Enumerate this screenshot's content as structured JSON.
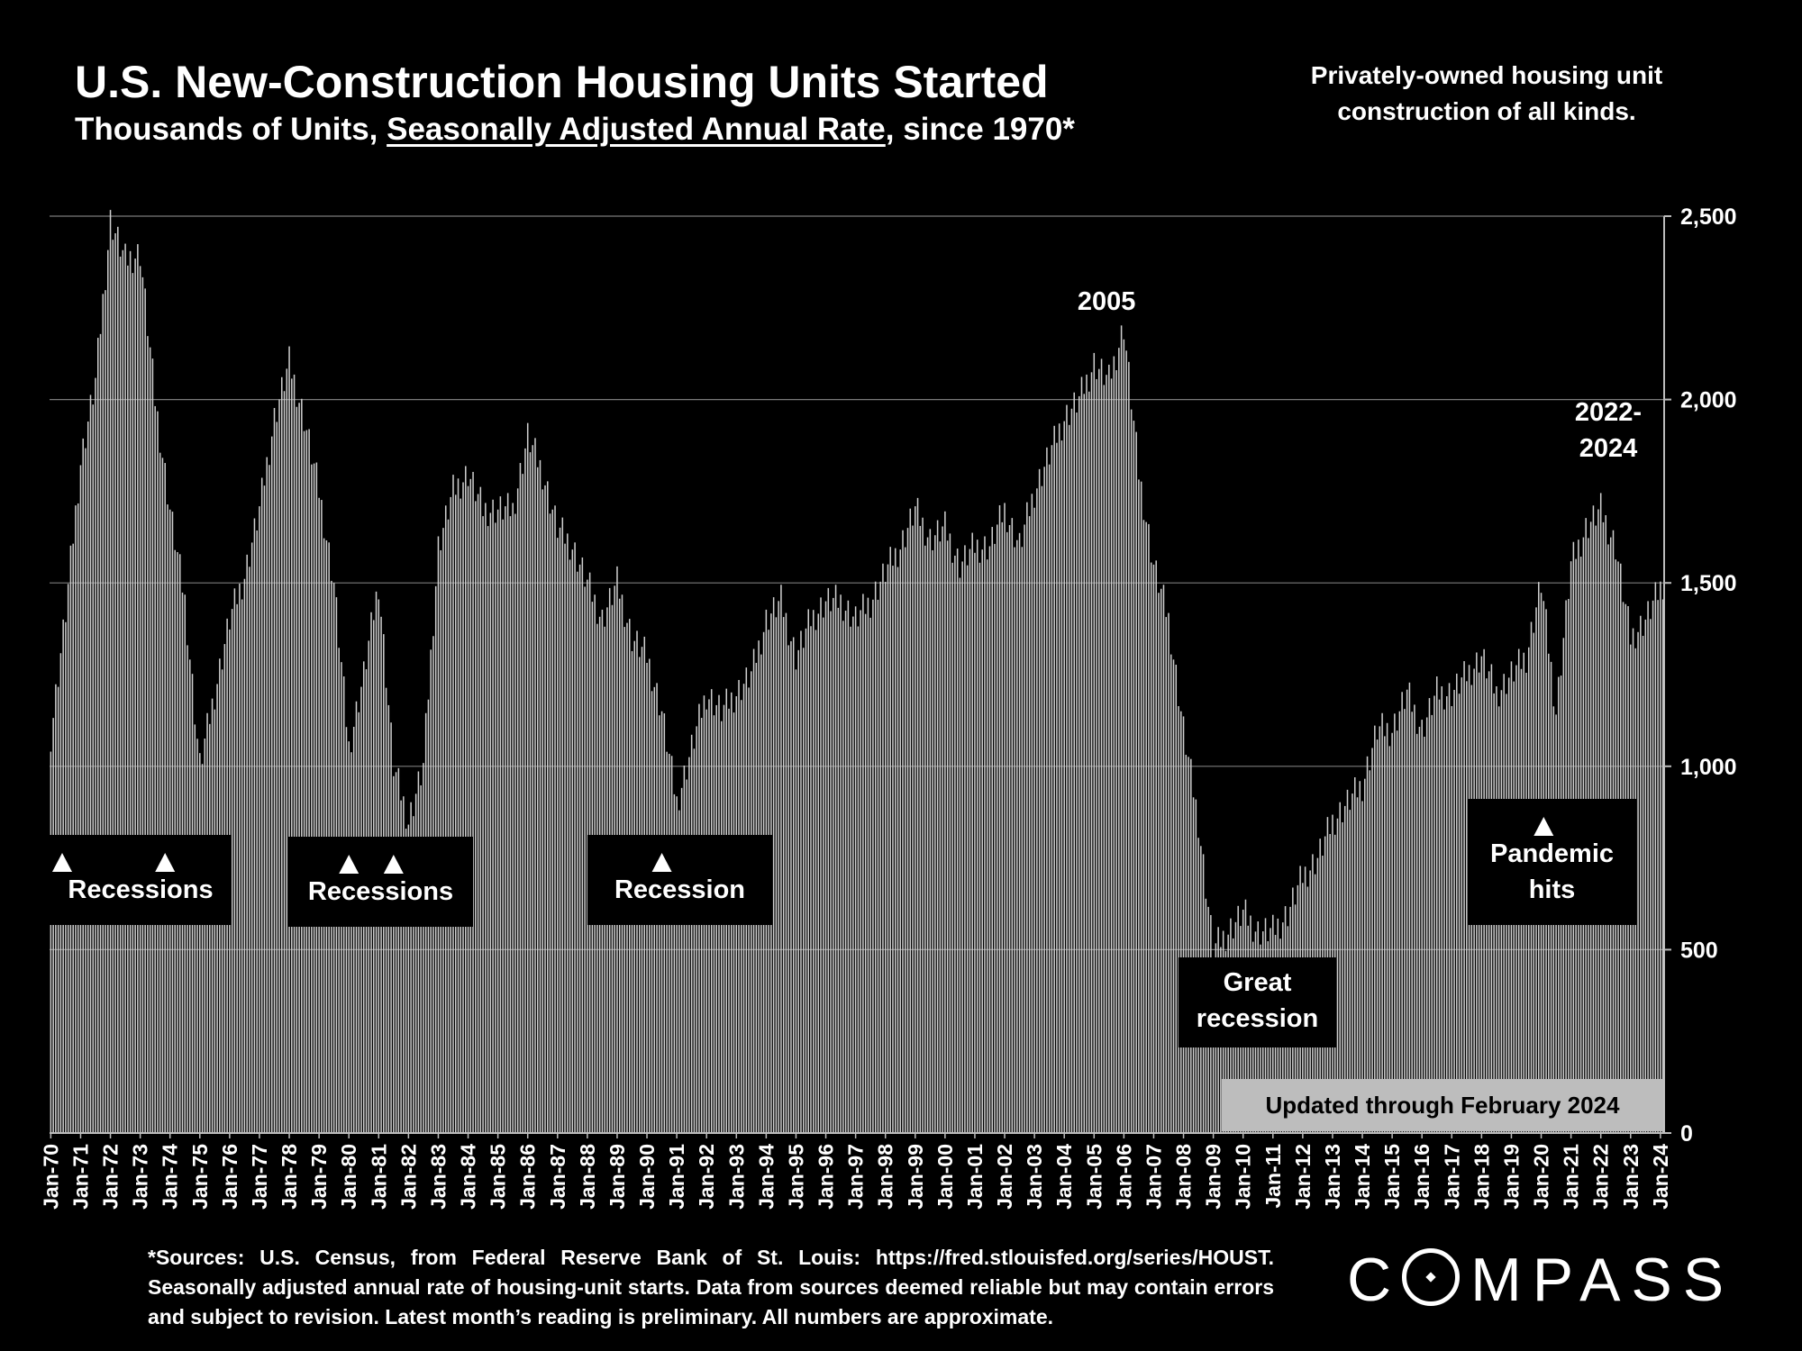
{
  "header": {
    "title": "U.S. New-Construction Housing Units Started",
    "subtitle_pre": "Thousands of Units, ",
    "subtitle_u": "Seasonally Adjusted Annual Rate",
    "subtitle_post": ", since 1970*",
    "note": "Privately-owned housing unit construction of all kinds."
  },
  "footer": {
    "source": "*Sources: U.S. Census, from Federal Reserve Bank of St. Louis:   https://fred.stlouisfed.org/series/HOUST. Seasonally adjusted annual rate of housing-unit starts. Data from sources deemed reliable but may contain errors and subject to revision. Latest month’s reading is preliminary. All numbers are approximate.",
    "brand_pre": "C",
    "brand_post": "MPASS"
  },
  "chart_data": {
    "type": "bar",
    "ylim": [
      0,
      2500
    ],
    "y_ticks": [
      "0",
      "500",
      "1,000",
      "1,500",
      "2,000",
      "2,500"
    ],
    "grid": true,
    "x_ticks": [
      "Jan-70",
      "Jan-71",
      "Jan-72",
      "Jan-73",
      "Jan-74",
      "Jan-75",
      "Jan-76",
      "Jan-77",
      "Jan-78",
      "Jan-79",
      "Jan-80",
      "Jan-81",
      "Jan-82",
      "Jan-83",
      "Jan-84",
      "Jan-85",
      "Jan-86",
      "Jan-87",
      "Jan-88",
      "Jan-89",
      "Jan-90",
      "Jan-91",
      "Jan-92",
      "Jan-93",
      "Jan-94",
      "Jan-95",
      "Jan-96",
      "Jan-97",
      "Jan-98",
      "Jan-99",
      "Jan-00",
      "Jan-01",
      "Jan-02",
      "Jan-03",
      "Jan-04",
      "Jan-05",
      "Jan-06",
      "Jan-07",
      "Jan-08",
      "Jan-09",
      "Jan-10",
      "Jan-11",
      "Jan-12",
      "Jan-13",
      "Jan-14",
      "Jan-15",
      "Jan-16",
      "Jan-17",
      "Jan-18",
      "Jan-19",
      "Jan-20",
      "Jan-21",
      "Jan-22",
      "Jan-23",
      "Jan-24"
    ],
    "series_start": "Jan-70",
    "series_end": "Feb-24",
    "anchor_months": [
      "Jan-70",
      "Jul-70",
      "Jan-71",
      "Jul-71",
      "Jan-72",
      "Jul-72",
      "Jan-73",
      "Jul-73",
      "Jan-74",
      "Jul-74",
      "Jan-75",
      "Jul-75",
      "Jan-76",
      "Jul-76",
      "Jan-77",
      "Jul-77",
      "Jan-78",
      "Jul-78",
      "Jan-79",
      "Jul-79",
      "Jan-80",
      "Jul-80",
      "Jan-81",
      "Jul-81",
      "Jan-82",
      "Jul-82",
      "Jan-83",
      "Jul-83",
      "Jan-84",
      "Jul-84",
      "Jan-85",
      "Jul-85",
      "Jan-86",
      "Jul-86",
      "Jan-87",
      "Jul-87",
      "Jan-88",
      "Jul-88",
      "Jan-89",
      "Jul-89",
      "Jan-90",
      "Jul-90",
      "Jan-91",
      "Jul-91",
      "Jan-92",
      "Jul-92",
      "Jan-93",
      "Jul-93",
      "Jan-94",
      "Jul-94",
      "Jan-95",
      "Jul-95",
      "Jan-96",
      "Jul-96",
      "Jan-97",
      "Jul-97",
      "Jan-98",
      "Jul-98",
      "Jan-99",
      "Jul-99",
      "Jan-00",
      "Jul-00",
      "Jan-01",
      "Jul-01",
      "Jan-02",
      "Jul-02",
      "Jan-03",
      "Jul-03",
      "Jan-04",
      "Jul-04",
      "Jan-05",
      "Jul-05",
      "Jan-06",
      "Jul-06",
      "Jan-07",
      "Jul-07",
      "Jan-08",
      "Jul-08",
      "Jan-09",
      "Jul-09",
      "Jan-10",
      "Jul-10",
      "Jan-11",
      "Jul-11",
      "Jan-12",
      "Jul-12",
      "Jan-13",
      "Jul-13",
      "Jan-14",
      "Jul-14",
      "Jan-15",
      "Jul-15",
      "Jan-16",
      "Jul-16",
      "Jan-17",
      "Jul-17",
      "Jan-18",
      "Jul-18",
      "Jan-19",
      "Jul-19",
      "Jan-20",
      "Jul-20",
      "Jan-21",
      "Jul-21",
      "Jan-22",
      "Jul-22",
      "Jan-23",
      "Jul-23",
      "Feb-24"
    ],
    "anchor_values": [
      1085,
      1420,
      1830,
      2050,
      2490,
      2380,
      2400,
      2000,
      1700,
      1450,
      1000,
      1200,
      1400,
      1520,
      1700,
      1950,
      2100,
      1950,
      1750,
      1500,
      1050,
      1250,
      1500,
      1000,
      850,
      1000,
      1600,
      1750,
      1800,
      1700,
      1700,
      1700,
      1900,
      1800,
      1650,
      1600,
      1500,
      1400,
      1500,
      1350,
      1300,
      1150,
      900,
      1050,
      1200,
      1150,
      1200,
      1250,
      1400,
      1450,
      1300,
      1400,
      1450,
      1450,
      1400,
      1450,
      1530,
      1600,
      1700,
      1620,
      1650,
      1550,
      1600,
      1600,
      1700,
      1600,
      1750,
      1850,
      1950,
      2000,
      2100,
      2050,
      2200,
      1800,
      1550,
      1400,
      1100,
      850,
      500,
      550,
      600,
      550,
      550,
      600,
      700,
      750,
      850,
      900,
      950,
      1100,
      1100,
      1200,
      1100,
      1200,
      1200,
      1250,
      1300,
      1200,
      1250,
      1300,
      1500,
      1150,
      1550,
      1650,
      1700,
      1600,
      1350,
      1400,
      1500
    ],
    "annotations": [
      {
        "text": "2005",
        "x": "Jun-05",
        "y": 2200
      },
      {
        "text_lines": [
          "2022-",
          "2024"
        ],
        "x": "Apr-22",
        "y": 1800
      }
    ],
    "callouts": [
      {
        "key": "r1",
        "lines": [
          "Recessions"
        ],
        "markers": [
          "Jan-70",
          "Nov-73"
        ]
      },
      {
        "key": "r2",
        "lines": [
          "Recessions"
        ],
        "markers": [
          "Jan-80",
          "Jul-81"
        ]
      },
      {
        "key": "r3",
        "lines": [
          "Recession"
        ],
        "markers": [
          "Jul-90"
        ]
      },
      {
        "key": "r4",
        "lines": [
          "Great",
          "recession"
        ],
        "markers": []
      },
      {
        "key": "r5",
        "lines": [
          "Pandemic",
          "hits"
        ],
        "markers": [
          "Feb-20"
        ]
      }
    ],
    "update_label": "Updated through February 2024"
  }
}
